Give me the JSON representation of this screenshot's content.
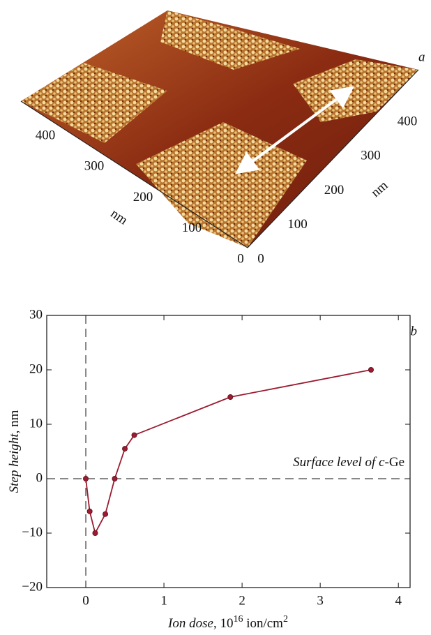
{
  "panel_a": {
    "letter": "a",
    "left_axis": {
      "ticks": [
        "0",
        "100",
        "200",
        "300",
        "400"
      ],
      "label": "nm"
    },
    "right_axis": {
      "ticks": [
        "0",
        "100",
        "200",
        "300",
        "400"
      ],
      "label": "nm"
    }
  },
  "chart_data": {
    "type": "line",
    "letter": "b",
    "xlabel": [
      "Ion dose",
      ", 10",
      "16",
      " ion/cm",
      "2"
    ],
    "ylabel": [
      "Step height",
      ", nm"
    ],
    "annotation": [
      "Surface level of ",
      "c",
      "-Ge"
    ],
    "x": [
      0,
      0.05,
      0.12,
      0.25,
      0.37,
      0.5,
      0.62,
      1.85,
      3.65
    ],
    "series": [
      {
        "color": "#9b1b30",
        "values": [
          0,
          -6,
          -10,
          -6.5,
          0,
          5.5,
          8,
          15,
          20
        ]
      }
    ],
    "xlim": [
      -0.5,
      4.15
    ],
    "ylim": [
      -20,
      30
    ],
    "xticks": [
      0,
      1,
      2,
      3,
      4
    ],
    "yticks": [
      {
        "value": -20,
        "label": "−20"
      },
      {
        "value": -10,
        "label": "−10"
      },
      0,
      10,
      20,
      30
    ],
    "hline": 0,
    "vline": 0
  }
}
